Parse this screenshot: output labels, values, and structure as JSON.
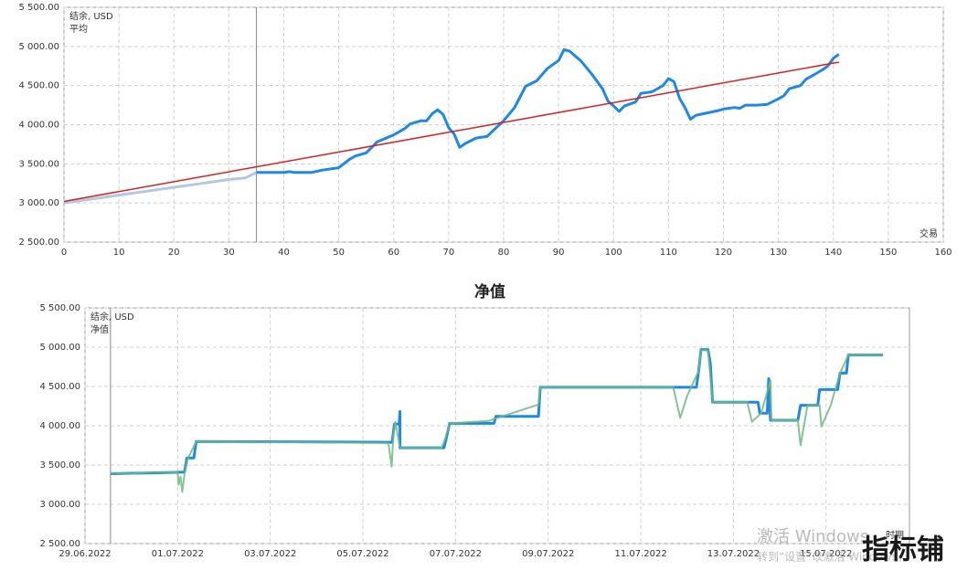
{
  "chart_data": [
    {
      "type": "line",
      "x_label": "交易",
      "xlim": [
        0,
        160
      ],
      "ylim": [
        2500,
        5500
      ],
      "xticks": [
        0,
        10,
        20,
        30,
        40,
        50,
        60,
        70,
        80,
        90,
        100,
        110,
        120,
        130,
        140,
        150,
        160
      ],
      "yticks": [
        {
          "value": 2500,
          "label": "2 500.00"
        },
        {
          "value": 3000,
          "label": "3 000.00"
        },
        {
          "value": 3500,
          "label": "3 500.00"
        },
        {
          "value": 4000,
          "label": "4 000.00"
        },
        {
          "value": 4500,
          "label": "4 500.00"
        },
        {
          "value": 5000,
          "label": "5 000.00"
        },
        {
          "value": 5500,
          "label": "5 500.00"
        }
      ],
      "grid": true,
      "vline": 35,
      "history_color": "#b4c6e2",
      "series": [
        {
          "name": "结余, USD",
          "color": "#1e88e5",
          "width": 3,
          "x": [
            0,
            5,
            10,
            15,
            20,
            25,
            30,
            33,
            35,
            40,
            41,
            42,
            45,
            47,
            50,
            52,
            53,
            55,
            57,
            60,
            62,
            63,
            65,
            66,
            67,
            68,
            69,
            70,
            71,
            72,
            73,
            75,
            77,
            78,
            80,
            82,
            84,
            86,
            88,
            90,
            91,
            92,
            94,
            96,
            98,
            99,
            100,
            101,
            102,
            104,
            105,
            107,
            109,
            110,
            111,
            112,
            113,
            114,
            115,
            117,
            119,
            120,
            122,
            123,
            124,
            126,
            128,
            130,
            131,
            132,
            133,
            134,
            135,
            137,
            138,
            139,
            140,
            141
          ],
          "values": [
            3000,
            3050,
            3100,
            3150,
            3200,
            3250,
            3300,
            3320,
            3390,
            3390,
            3400,
            3390,
            3390,
            3420,
            3450,
            3560,
            3600,
            3640,
            3780,
            3870,
            3950,
            4010,
            4050,
            4050,
            4140,
            4190,
            4130,
            3960,
            3880,
            3710,
            3760,
            3830,
            3850,
            3920,
            4050,
            4220,
            4490,
            4560,
            4720,
            4820,
            4960,
            4940,
            4820,
            4650,
            4460,
            4300,
            4240,
            4170,
            4240,
            4290,
            4400,
            4420,
            4500,
            4590,
            4550,
            4340,
            4220,
            4070,
            4120,
            4150,
            4180,
            4200,
            4220,
            4210,
            4250,
            4250,
            4260,
            4330,
            4370,
            4460,
            4480,
            4500,
            4580,
            4660,
            4700,
            4750,
            4850,
            4900
          ]
        },
        {
          "name": "平均",
          "color": "#d62020",
          "width": 1.5,
          "x": [
            0,
            141
          ],
          "values": [
            3020,
            4800
          ]
        }
      ]
    },
    {
      "type": "line",
      "title": "净值",
      "x_label": "时期",
      "xlim": [
        0,
        17.8
      ],
      "ylim": [
        2500,
        5500
      ],
      "xticks": [
        {
          "value": 0,
          "label": "29.06.2022"
        },
        {
          "value": 2,
          "label": "01.07.2022"
        },
        {
          "value": 4,
          "label": "03.07.2022"
        },
        {
          "value": 6,
          "label": "05.07.2022"
        },
        {
          "value": 8,
          "label": "07.07.2022"
        },
        {
          "value": 10,
          "label": "09.07.2022"
        },
        {
          "value": 12,
          "label": "11.07.2022"
        },
        {
          "value": 14,
          "label": "13.07.2022"
        },
        {
          "value": 16,
          "label": "15.07.2022"
        }
      ],
      "yticks": [
        {
          "value": 2500,
          "label": "2 500.00"
        },
        {
          "value": 3000,
          "label": "3 000.00"
        },
        {
          "value": 3500,
          "label": "3 500.00"
        },
        {
          "value": 4000,
          "label": "4 000.00"
        },
        {
          "value": 4500,
          "label": "4 500.00"
        },
        {
          "value": 5000,
          "label": "5 000.00"
        },
        {
          "value": 5500,
          "label": "5 500.00"
        }
      ],
      "grid": true,
      "vline": 0.55,
      "series": [
        {
          "name": "结余, USD",
          "color": "#1e88e5",
          "width": 3,
          "x": [
            0.55,
            1.45,
            2.15,
            2.2,
            2.35,
            2.4,
            6.63,
            6.68,
            6.78,
            6.8,
            6.8,
            7.75,
            7.8,
            7.87,
            8.83,
            8.87,
            9.79,
            9.83,
            13.2,
            13.25,
            13.3,
            13.45,
            13.5,
            13.55,
            14.53,
            14.57,
            14.73,
            14.76,
            14.8,
            15.39,
            15.45,
            15.82,
            15.86,
            16.25,
            16.3,
            16.44,
            16.48,
            17.23
          ],
          "values": [
            3390,
            3400,
            3410,
            3590,
            3590,
            3800,
            3790,
            4020,
            4020,
            4180,
            3720,
            3720,
            3840,
            4030,
            4030,
            4120,
            4120,
            4490,
            4490,
            4700,
            4970,
            4970,
            4800,
            4300,
            4300,
            4160,
            4160,
            4600,
            4070,
            4070,
            4260,
            4260,
            4460,
            4460,
            4670,
            4670,
            4900,
            4900
          ]
        },
        {
          "name": "净值",
          "color": "#6fba7c",
          "width": 2,
          "x": [
            0.55,
            1.0,
            1.45,
            2.0,
            2.02,
            2.06,
            2.1,
            2.15,
            2.22,
            2.4,
            6.55,
            6.62,
            6.66,
            6.7,
            6.8,
            7.7,
            7.78,
            7.87,
            8.7,
            9.79,
            9.83,
            12.7,
            12.85,
            13.0,
            13.25,
            13.3,
            13.45,
            13.55,
            14.3,
            14.4,
            14.6,
            14.8,
            14.82,
            15.39,
            15.45,
            15.6,
            15.86,
            15.9,
            16.1,
            16.3,
            16.48,
            17.23
          ],
          "values": [
            3400,
            3390,
            3410,
            3410,
            3250,
            3350,
            3160,
            3390,
            3580,
            3800,
            3780,
            3480,
            3900,
            4050,
            3720,
            3720,
            3840,
            4030,
            4060,
            4270,
            4490,
            4490,
            4100,
            4380,
            4700,
            4960,
            4960,
            4300,
            4300,
            4050,
            4160,
            4580,
            4070,
            4070,
            3750,
            4260,
            4260,
            3990,
            4260,
            4670,
            4900,
            4900
          ]
        }
      ]
    }
  ],
  "watermark": {
    "line1": "激活 Windows",
    "line2": "转到“设置”以激活 Windows。",
    "logo": "指标铺"
  }
}
